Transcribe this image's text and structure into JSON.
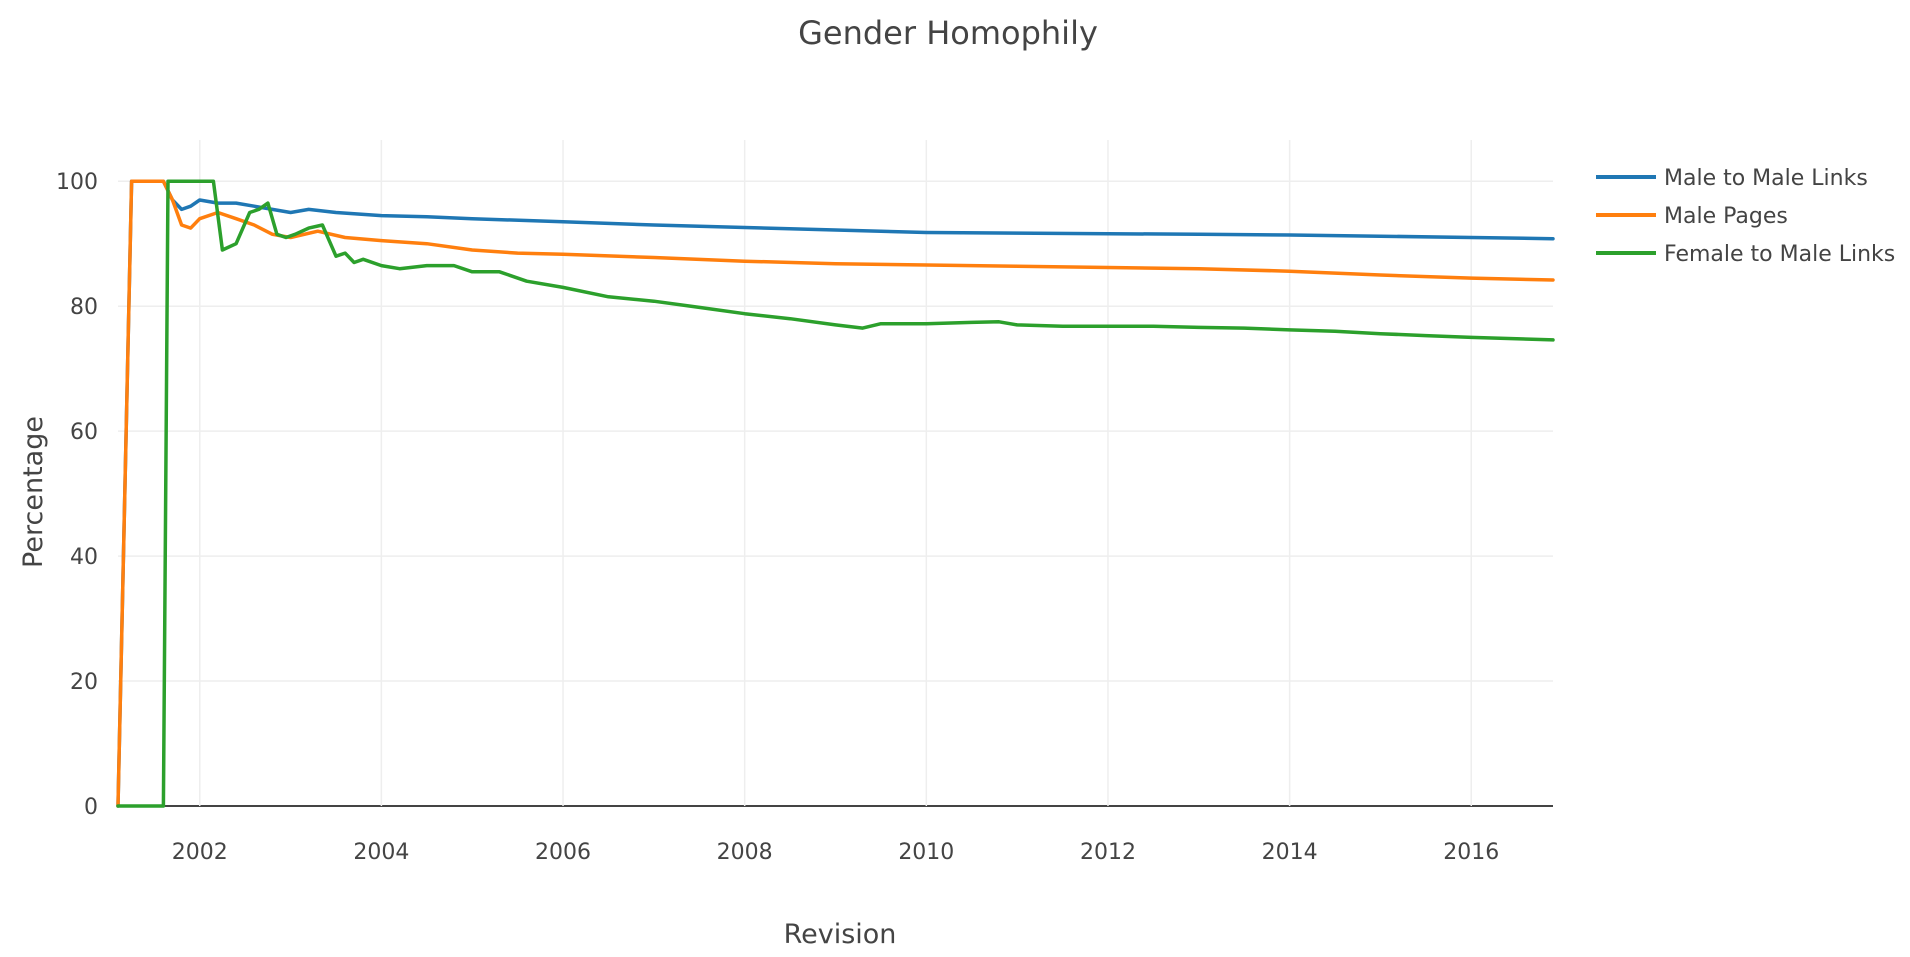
{
  "chart_data": {
    "type": "line",
    "title": "Gender Homophily",
    "xlabel": "Revision",
    "ylabel": "Percentage",
    "xlim": [
      2001.1,
      2016.9
    ],
    "ylim": [
      0,
      105
    ],
    "x_ticks": [
      2002,
      2004,
      2006,
      2008,
      2010,
      2012,
      2014,
      2016
    ],
    "x_tick_labels": [
      "2002",
      "2004",
      "2006",
      "2008",
      "2010",
      "2012",
      "2014",
      "2016"
    ],
    "y_ticks": [
      0,
      20,
      40,
      60,
      80,
      100
    ],
    "y_tick_labels": [
      "0",
      "20",
      "40",
      "60",
      "80",
      "100"
    ],
    "grid": true,
    "legend_position": "top-right",
    "series": [
      {
        "name": "Male to Male Links",
        "color": "#1f77b4",
        "x": [
          2001.1,
          2001.25,
          2001.4,
          2001.6,
          2001.7,
          2001.8,
          2001.9,
          2002.0,
          2002.2,
          2002.4,
          2002.6,
          2002.8,
          2003.0,
          2003.2,
          2003.5,
          2004.0,
          2004.5,
          2005.0,
          2006.0,
          2007.0,
          2008.0,
          2009.0,
          2010.0,
          2011.0,
          2012.0,
          2013.0,
          2014.0,
          2015.0,
          2016.0,
          2016.9
        ],
        "y": [
          0,
          100,
          100,
          100,
          97,
          95.5,
          96,
          97,
          96.5,
          96.5,
          96,
          95.5,
          95,
          95.5,
          95,
          94.5,
          94.3,
          94,
          93.5,
          93,
          92.6,
          92.2,
          91.8,
          91.7,
          91.6,
          91.5,
          91.4,
          91.2,
          91.0,
          90.8
        ]
      },
      {
        "name": "Male Pages",
        "color": "#ff7f0e",
        "x": [
          2001.1,
          2001.25,
          2001.4,
          2001.6,
          2001.7,
          2001.8,
          2001.9,
          2002.0,
          2002.2,
          2002.4,
          2002.6,
          2002.8,
          2003.0,
          2003.3,
          2003.6,
          2004.0,
          2004.5,
          2005.0,
          2005.5,
          2006.0,
          2007.0,
          2008.0,
          2009.0,
          2010.0,
          2011.0,
          2012.0,
          2013.0,
          2014.0,
          2015.0,
          2016.0,
          2016.9
        ],
        "y": [
          0,
          100,
          100,
          100,
          97,
          93,
          92.5,
          94,
          95,
          94,
          93,
          91.5,
          91,
          92,
          91,
          90.5,
          90,
          89,
          88.5,
          88.3,
          87.8,
          87.2,
          86.8,
          86.6,
          86.4,
          86.2,
          86.0,
          85.6,
          85.0,
          84.5,
          84.2
        ]
      },
      {
        "name": "Female to Male Links",
        "color": "#2ca02c",
        "x": [
          2001.1,
          2001.5,
          2001.6,
          2001.65,
          2001.75,
          2002.0,
          2002.15,
          2002.25,
          2002.4,
          2002.55,
          2002.65,
          2002.75,
          2002.85,
          2002.95,
          2003.05,
          2003.2,
          2003.35,
          2003.5,
          2003.6,
          2003.7,
          2003.8,
          2004.0,
          2004.2,
          2004.5,
          2004.8,
          2005.0,
          2005.3,
          2005.6,
          2006.0,
          2006.5,
          2007.0,
          2007.5,
          2008.0,
          2008.5,
          2009.0,
          2009.3,
          2009.5,
          2010.0,
          2010.5,
          2010.8,
          2011.0,
          2011.5,
          2012.0,
          2012.5,
          2013.0,
          2013.5,
          2014.0,
          2014.5,
          2015.0,
          2015.5,
          2016.0,
          2016.5,
          2016.9
        ],
        "y": [
          0,
          0,
          0,
          100,
          100,
          100,
          100,
          89,
          90,
          95,
          95.5,
          96.5,
          91.5,
          91,
          91.5,
          92.5,
          93,
          88,
          88.5,
          87,
          87.5,
          86.5,
          86,
          86.5,
          86.5,
          85.5,
          85.5,
          84,
          83,
          81.5,
          80.8,
          79.8,
          78.8,
          78,
          77,
          76.5,
          77.2,
          77.2,
          77.4,
          77.5,
          77,
          76.8,
          76.8,
          76.8,
          76.6,
          76.5,
          76.2,
          76,
          75.6,
          75.3,
          75.0,
          74.8,
          74.6
        ]
      }
    ]
  }
}
